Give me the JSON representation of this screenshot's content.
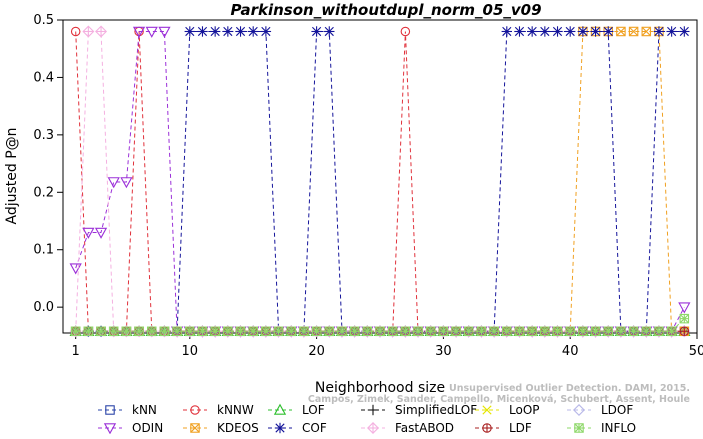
{
  "chart_data": {
    "type": "line",
    "title": "Parkinson_withoutdupl_norm_05_v09",
    "xlabel": "Neighborhood size",
    "ylabel": "Adjusted P@n",
    "xlim": [
      0,
      50
    ],
    "ylim": [
      -0.045,
      0.5
    ],
    "xticks": [
      1,
      10,
      20,
      30,
      40,
      50
    ],
    "yticks": [
      0.0,
      0.1,
      0.2,
      0.3,
      0.4,
      0.5
    ],
    "x": [
      1,
      2,
      3,
      4,
      5,
      6,
      7,
      8,
      9,
      10,
      11,
      12,
      13,
      14,
      15,
      16,
      17,
      18,
      19,
      20,
      21,
      22,
      23,
      24,
      25,
      26,
      27,
      28,
      29,
      30,
      31,
      32,
      33,
      34,
      35,
      36,
      37,
      38,
      39,
      40,
      41,
      42,
      43,
      44,
      45,
      46,
      47,
      48,
      49
    ],
    "series": [
      {
        "name": "kNN",
        "color": "#2a44a8",
        "marker": "square",
        "values": [
          -0.042,
          -0.042,
          -0.042,
          -0.042,
          -0.042,
          -0.042,
          -0.042,
          -0.042,
          -0.042,
          -0.042,
          -0.042,
          -0.042,
          -0.042,
          -0.042,
          -0.042,
          -0.042,
          -0.042,
          -0.042,
          -0.042,
          -0.042,
          -0.042,
          -0.042,
          -0.042,
          -0.042,
          -0.042,
          -0.042,
          -0.042,
          -0.042,
          -0.042,
          -0.042,
          -0.042,
          -0.042,
          -0.042,
          -0.042,
          -0.042,
          -0.042,
          -0.042,
          -0.042,
          -0.042,
          -0.042,
          -0.042,
          -0.042,
          -0.042,
          -0.042,
          -0.042,
          -0.042,
          -0.042,
          -0.042,
          -0.042
        ]
      },
      {
        "name": "kNNW",
        "color": "#e0303a",
        "marker": "circle",
        "values": [
          0.48,
          -0.042,
          -0.042,
          -0.042,
          -0.042,
          0.48,
          -0.042,
          -0.042,
          -0.042,
          -0.042,
          -0.042,
          -0.042,
          -0.042,
          -0.042,
          -0.042,
          -0.042,
          -0.042,
          -0.042,
          -0.042,
          -0.042,
          -0.042,
          -0.042,
          -0.042,
          -0.042,
          -0.042,
          -0.042,
          0.48,
          -0.042,
          -0.042,
          -0.042,
          -0.042,
          -0.042,
          -0.042,
          -0.042,
          -0.042,
          -0.042,
          -0.042,
          -0.042,
          -0.042,
          -0.042,
          -0.042,
          -0.042,
          -0.042,
          -0.042,
          -0.042,
          -0.042,
          -0.042,
          -0.042,
          -0.042
        ]
      },
      {
        "name": "LOF",
        "color": "#2fbf2f",
        "marker": "triangle-up",
        "values": [
          -0.042,
          -0.042,
          -0.042,
          -0.042,
          -0.042,
          -0.042,
          -0.042,
          -0.042,
          -0.042,
          -0.042,
          -0.042,
          -0.042,
          -0.042,
          -0.042,
          -0.042,
          -0.042,
          -0.042,
          -0.042,
          -0.042,
          -0.042,
          -0.042,
          -0.042,
          -0.042,
          -0.042,
          -0.042,
          -0.042,
          -0.042,
          -0.042,
          -0.042,
          -0.042,
          -0.042,
          -0.042,
          -0.042,
          -0.042,
          -0.042,
          -0.042,
          -0.042,
          -0.042,
          -0.042,
          -0.042,
          -0.042,
          -0.042,
          -0.042,
          -0.042,
          -0.042,
          -0.042,
          -0.042,
          -0.042,
          -0.042
        ]
      },
      {
        "name": "SimplifiedLOF",
        "color": "#111111",
        "marker": "plus",
        "values": [
          -0.042,
          -0.042,
          -0.042,
          -0.042,
          -0.042,
          -0.042,
          -0.042,
          -0.042,
          -0.042,
          -0.042,
          -0.042,
          -0.042,
          -0.042,
          -0.042,
          -0.042,
          -0.042,
          -0.042,
          -0.042,
          -0.042,
          -0.042,
          -0.042,
          -0.042,
          -0.042,
          -0.042,
          -0.042,
          -0.042,
          -0.042,
          -0.042,
          -0.042,
          -0.042,
          -0.042,
          -0.042,
          -0.042,
          -0.042,
          -0.042,
          -0.042,
          -0.042,
          -0.042,
          -0.042,
          -0.042,
          -0.042,
          -0.042,
          -0.042,
          -0.042,
          -0.042,
          -0.042,
          -0.042,
          -0.042,
          -0.042
        ]
      },
      {
        "name": "LoOP",
        "color": "#e6e600",
        "marker": "x",
        "values": [
          -0.042,
          -0.042,
          -0.042,
          -0.042,
          -0.042,
          -0.042,
          -0.042,
          -0.042,
          -0.042,
          -0.042,
          -0.042,
          -0.042,
          -0.042,
          -0.042,
          -0.042,
          -0.042,
          -0.042,
          -0.042,
          -0.042,
          -0.042,
          -0.042,
          -0.042,
          -0.042,
          -0.042,
          -0.042,
          -0.042,
          -0.042,
          -0.042,
          -0.042,
          -0.042,
          -0.042,
          -0.042,
          -0.042,
          -0.042,
          -0.042,
          -0.042,
          -0.042,
          -0.042,
          -0.042,
          -0.042,
          -0.042,
          -0.042,
          -0.042,
          -0.042,
          -0.042,
          -0.042,
          -0.042,
          -0.042,
          -0.042
        ]
      },
      {
        "name": "LDOF",
        "color": "#b8b8e8",
        "marker": "diamond",
        "values": [
          -0.042,
          -0.042,
          -0.042,
          -0.042,
          -0.042,
          -0.042,
          -0.042,
          -0.042,
          -0.042,
          -0.042,
          -0.042,
          -0.042,
          -0.042,
          -0.042,
          -0.042,
          -0.042,
          -0.042,
          -0.042,
          -0.042,
          -0.042,
          -0.042,
          -0.042,
          -0.042,
          -0.042,
          -0.042,
          -0.042,
          -0.042,
          -0.042,
          -0.042,
          -0.042,
          -0.042,
          -0.042,
          -0.042,
          -0.042,
          -0.042,
          -0.042,
          -0.042,
          -0.042,
          -0.042,
          -0.042,
          -0.042,
          -0.042,
          -0.042,
          -0.042,
          -0.042,
          -0.042,
          -0.042,
          -0.042,
          -0.042
        ]
      },
      {
        "name": "ODIN",
        "color": "#9b30d8",
        "marker": "triangle-down",
        "values": [
          0.068,
          0.13,
          0.13,
          0.218,
          0.218,
          0.48,
          0.48,
          0.48,
          -0.042,
          -0.042,
          -0.042,
          -0.042,
          -0.042,
          -0.042,
          -0.042,
          -0.042,
          -0.042,
          -0.042,
          -0.042,
          -0.042,
          -0.042,
          -0.042,
          -0.042,
          -0.042,
          -0.042,
          -0.042,
          -0.042,
          -0.042,
          -0.042,
          -0.042,
          -0.042,
          -0.042,
          -0.042,
          -0.042,
          -0.042,
          -0.042,
          -0.042,
          -0.042,
          -0.042,
          -0.042,
          -0.042,
          -0.042,
          -0.042,
          -0.042,
          -0.042,
          -0.042,
          -0.042,
          -0.042,
          0.0
        ]
      },
      {
        "name": "KDEOS",
        "color": "#f0a020",
        "marker": "square-x",
        "values": [
          -0.042,
          -0.042,
          -0.042,
          -0.042,
          -0.042,
          -0.042,
          -0.042,
          -0.042,
          -0.042,
          -0.042,
          -0.042,
          -0.042,
          -0.042,
          -0.042,
          -0.042,
          -0.042,
          -0.042,
          -0.042,
          -0.042,
          -0.042,
          -0.042,
          -0.042,
          -0.042,
          -0.042,
          -0.042,
          -0.042,
          -0.042,
          -0.042,
          -0.042,
          -0.042,
          -0.042,
          -0.042,
          -0.042,
          -0.042,
          -0.042,
          -0.042,
          -0.042,
          -0.042,
          -0.042,
          -0.042,
          0.48,
          0.48,
          0.48,
          0.48,
          0.48,
          0.48,
          0.48,
          -0.042,
          -0.042
        ]
      },
      {
        "name": "COF",
        "color": "#14149a",
        "marker": "asterisk",
        "values": [
          -0.042,
          -0.042,
          -0.042,
          -0.042,
          -0.042,
          -0.042,
          -0.042,
          -0.042,
          -0.042,
          0.48,
          0.48,
          0.48,
          0.48,
          0.48,
          0.48,
          0.48,
          -0.042,
          -0.042,
          -0.042,
          0.48,
          0.48,
          -0.042,
          -0.042,
          -0.042,
          -0.042,
          -0.042,
          -0.042,
          -0.042,
          -0.042,
          -0.042,
          -0.042,
          -0.042,
          -0.042,
          -0.042,
          0.48,
          0.48,
          0.48,
          0.48,
          0.48,
          0.48,
          0.48,
          0.48,
          0.48,
          -0.042,
          -0.042,
          -0.042,
          0.48,
          0.48,
          0.48
        ]
      },
      {
        "name": "FastABOD",
        "color": "#f4b0e0",
        "marker": "diamond-plus",
        "values": [
          -0.042,
          0.48,
          0.48,
          -0.042,
          -0.042,
          -0.042,
          -0.042,
          -0.042,
          -0.042,
          -0.042,
          -0.042,
          -0.042,
          -0.042,
          -0.042,
          -0.042,
          -0.042,
          -0.042,
          -0.042,
          -0.042,
          -0.042,
          -0.042,
          -0.042,
          -0.042,
          -0.042,
          -0.042,
          -0.042,
          -0.042,
          -0.042,
          -0.042,
          -0.042,
          -0.042,
          -0.042,
          -0.042,
          -0.042,
          -0.042,
          -0.042,
          -0.042,
          -0.042,
          -0.042,
          -0.042,
          -0.042,
          -0.042,
          -0.042,
          -0.042,
          -0.042,
          -0.042,
          -0.042,
          -0.042,
          -0.042
        ]
      },
      {
        "name": "LDF",
        "color": "#a82020",
        "marker": "circle-plus",
        "values": [
          -0.042,
          -0.042,
          -0.042,
          -0.042,
          -0.042,
          -0.042,
          -0.042,
          -0.042,
          -0.042,
          -0.042,
          -0.042,
          -0.042,
          -0.042,
          -0.042,
          -0.042,
          -0.042,
          -0.042,
          -0.042,
          -0.042,
          -0.042,
          -0.042,
          -0.042,
          -0.042,
          -0.042,
          -0.042,
          -0.042,
          -0.042,
          -0.042,
          -0.042,
          -0.042,
          -0.042,
          -0.042,
          -0.042,
          -0.042,
          -0.042,
          -0.042,
          -0.042,
          -0.042,
          -0.042,
          -0.042,
          -0.042,
          -0.042,
          -0.042,
          -0.042,
          -0.042,
          -0.042,
          -0.042,
          -0.042,
          -0.042
        ]
      },
      {
        "name": "INFLO",
        "color": "#8ed86a",
        "marker": "square-asterisk",
        "values": [
          -0.042,
          -0.042,
          -0.042,
          -0.042,
          -0.042,
          -0.042,
          -0.042,
          -0.042,
          -0.042,
          -0.042,
          -0.042,
          -0.042,
          -0.042,
          -0.042,
          -0.042,
          -0.042,
          -0.042,
          -0.042,
          -0.042,
          -0.042,
          -0.042,
          -0.042,
          -0.042,
          -0.042,
          -0.042,
          -0.042,
          -0.042,
          -0.042,
          -0.042,
          -0.042,
          -0.042,
          -0.042,
          -0.042,
          -0.042,
          -0.042,
          -0.042,
          -0.042,
          -0.042,
          -0.042,
          -0.042,
          -0.042,
          -0.042,
          -0.042,
          -0.042,
          -0.042,
          -0.042,
          -0.042,
          -0.042,
          -0.02
        ]
      }
    ],
    "legend_position": "bottom",
    "grid": false
  },
  "credit_lines": [
    "Unsupervised Outlier Detection. DAMI, 2015.",
    "Campos, Zimek, Sander, Campello, Micenková, Schubert, Assent, Houle"
  ]
}
